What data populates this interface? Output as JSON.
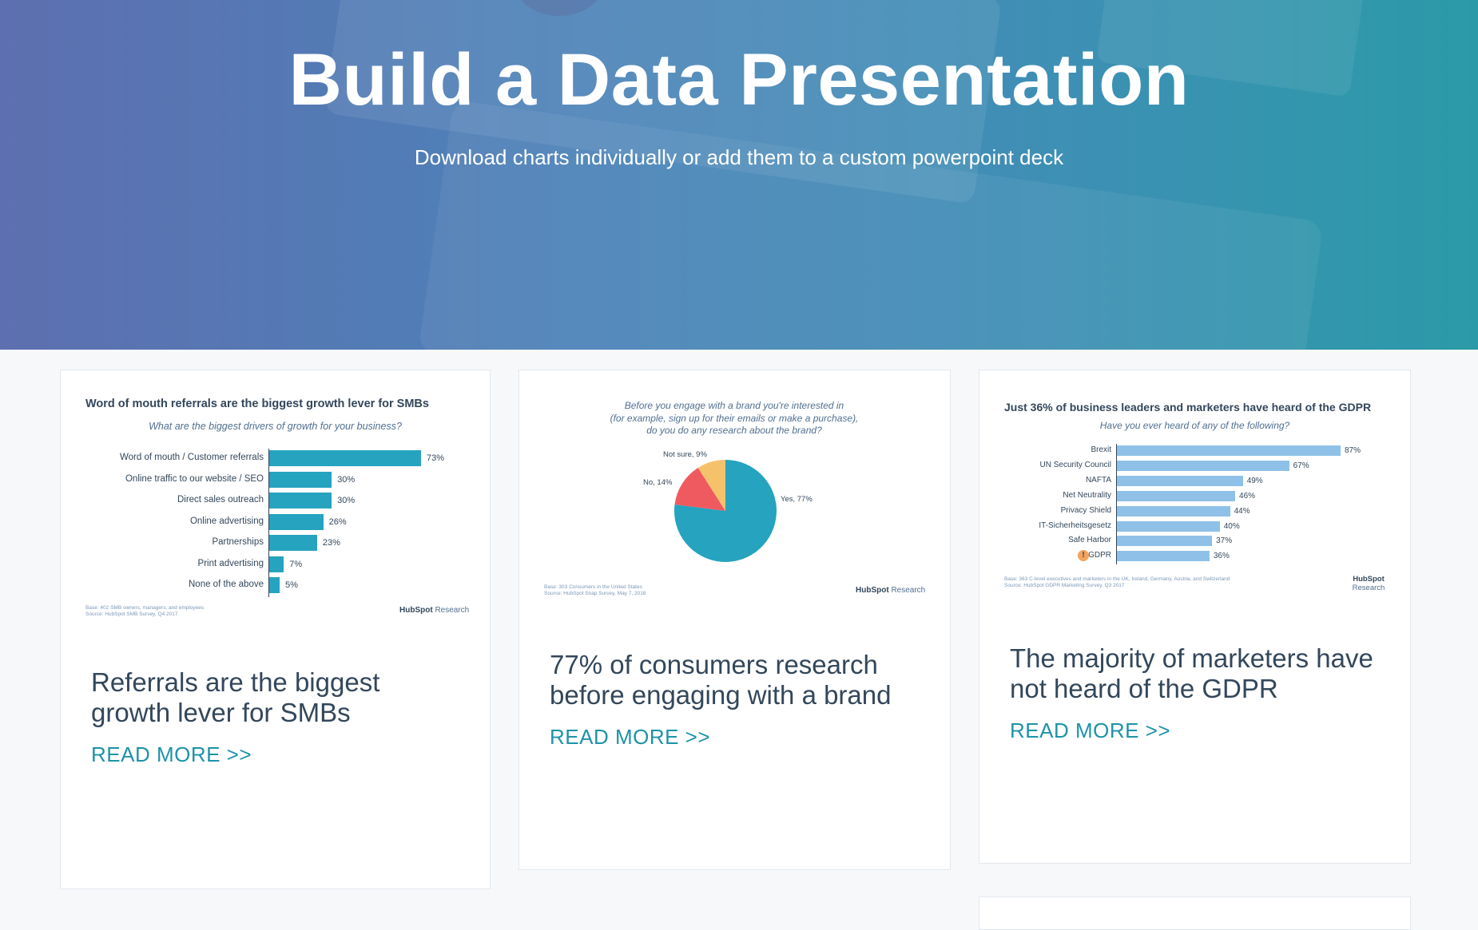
{
  "hero": {
    "title": "Build a Data Presentation",
    "subtitle": "Download charts individually or add them to a custom powerpoint deck"
  },
  "cards": [
    {
      "headline": "Referrals are the biggest growth lever for SMBs",
      "read_more": "READ MORE >>",
      "chart_data": {
        "type": "bar",
        "orientation": "horizontal",
        "title": "Word of mouth referrals are the biggest growth lever for SMBs",
        "subtitle": "What are the biggest drivers of growth for your business?",
        "categories": [
          "Word of mouth / Customer referrals",
          "Online traffic to our website / SEO",
          "Direct sales outreach",
          "Online advertising",
          "Partnerships",
          "Print advertising",
          "None of the above"
        ],
        "values": [
          73,
          30,
          30,
          26,
          23,
          7,
          5
        ],
        "value_labels": [
          "73%",
          "30%",
          "30%",
          "26%",
          "23%",
          "7%",
          "5%"
        ],
        "color": "#25a3bf",
        "base_note": [
          "Base: 402 SMB owners, managers, and employees",
          "Source: HubSpot SMB Survey, Q4 2017"
        ],
        "logo": {
          "brand": "HubSpot",
          "suffix": "Research"
        }
      }
    },
    {
      "headline": "77% of consumers research before engaging with a brand",
      "read_more": "READ MORE >>",
      "chart_data": {
        "type": "pie",
        "question": [
          "Before you engage with a brand you're interested in",
          "(for example, sign up for their emails or make a purchase),",
          "do you do any research about the brand?"
        ],
        "categories": [
          "Yes",
          "No",
          "Not sure"
        ],
        "values": [
          77,
          14,
          9
        ],
        "slice_labels": [
          "Yes, 77%",
          "No, 14%",
          "Not sure, 9%"
        ],
        "colors": [
          "#25a3bf",
          "#ef5a60",
          "#f5c26b"
        ],
        "base_note": [
          "Base: 303 Consumers in the United States",
          "Source: HubSpot Snap Survey, May 7, 2018"
        ],
        "logo": {
          "brand": "HubSpot",
          "suffix": "Research"
        }
      }
    },
    {
      "headline": "The majority of marketers have not heard of the GDPR",
      "read_more": "READ MORE >>",
      "chart_data": {
        "type": "bar",
        "orientation": "horizontal",
        "title": "Just 36% of business leaders and marketers have heard of the GDPR",
        "subtitle": "Have you ever heard of any of the following?",
        "categories": [
          "Brexit",
          "UN Security Council",
          "NAFTA",
          "Net Neutrality",
          "Privacy Shield",
          "IT-Sicherheitsgesetz",
          "Safe Harbor",
          "GDPR"
        ],
        "values": [
          87,
          67,
          49,
          46,
          44,
          40,
          37,
          36
        ],
        "value_labels": [
          "87%",
          "67%",
          "49%",
          "46%",
          "44%",
          "40%",
          "37%",
          "36%"
        ],
        "color": "#8fc1e8",
        "highlight_icon": "exclamation-icon",
        "base_note": [
          "Base: 363 C-level executives and marketers in the UK, Ireland, Germany, Austria, and Switzerland",
          "Source: HubSpot GDPR Marketing Survey, Q3 2017"
        ],
        "logo": {
          "brand": "HubSpot",
          "suffix": "Research"
        }
      }
    }
  ]
}
